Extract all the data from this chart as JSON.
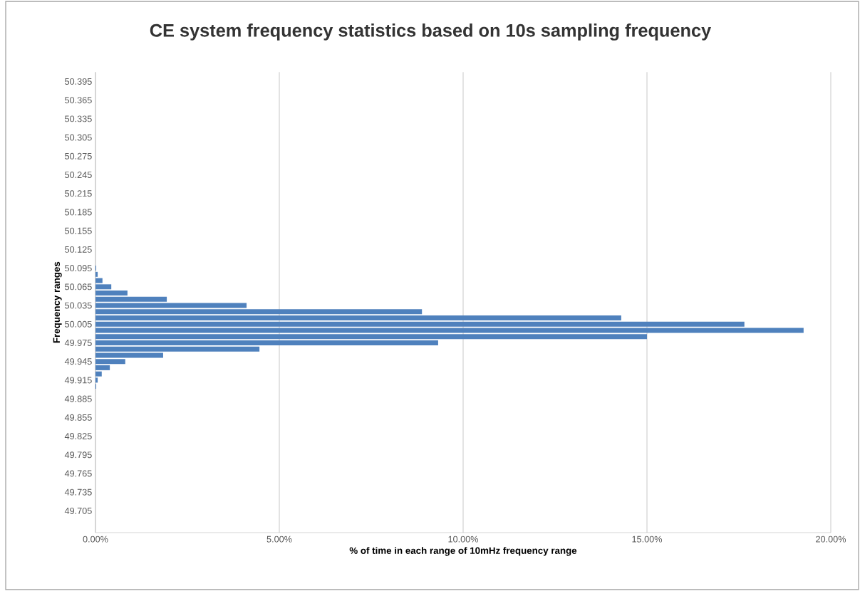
{
  "chart_data": {
    "type": "bar",
    "orientation": "horizontal",
    "title": "CE system frequency statistics based on 10s sampling frequency",
    "xlabel": "% of time in each range of 10mHz frequency range",
    "ylabel": "Frequency ranges",
    "categories": [
      "50.395",
      null,
      null,
      "50.365",
      null,
      null,
      "50.335",
      null,
      null,
      "50.305",
      null,
      null,
      "50.275",
      null,
      null,
      "50.245",
      null,
      null,
      "50.215",
      null,
      null,
      "50.185",
      null,
      null,
      "50.155",
      null,
      null,
      "50.125",
      null,
      null,
      "50.095",
      null,
      null,
      "50.065",
      null,
      null,
      "50.035",
      null,
      null,
      "50.005",
      null,
      null,
      "49.975",
      null,
      null,
      "49.945",
      null,
      null,
      "49.915",
      null,
      null,
      "49.885",
      null,
      null,
      "49.855",
      null,
      null,
      "49.825",
      null,
      null,
      "49.795",
      null,
      null,
      "49.765",
      null,
      null,
      "49.735",
      null,
      null,
      "49.705"
    ],
    "values": [
      null,
      null,
      null,
      null,
      null,
      null,
      null,
      null,
      null,
      null,
      null,
      null,
      null,
      null,
      null,
      null,
      null,
      null,
      null,
      null,
      null,
      null,
      null,
      null,
      null,
      null,
      null,
      null,
      null,
      null,
      0.02,
      0.06,
      0.19,
      0.43,
      0.87,
      1.94,
      4.11,
      8.88,
      14.3,
      17.65,
      19.26,
      15.0,
      9.32,
      4.46,
      1.84,
      0.81,
      0.39,
      0.17,
      0.06,
      0.02,
      null,
      null,
      null,
      null,
      null,
      null,
      null,
      null,
      null,
      null,
      null,
      null,
      null,
      null,
      null,
      null,
      null,
      null,
      null,
      null
    ],
    "color": "#4f81bd",
    "xlim": [
      0,
      20
    ],
    "xticks": [
      {
        "value": 0,
        "label": "0.00%"
      },
      {
        "value": 5,
        "label": "5.00%"
      },
      {
        "value": 10,
        "label": "10.00%"
      },
      {
        "value": 15,
        "label": "15.00%"
      },
      {
        "value": 20,
        "label": "20.00%"
      }
    ],
    "grid": "x"
  }
}
